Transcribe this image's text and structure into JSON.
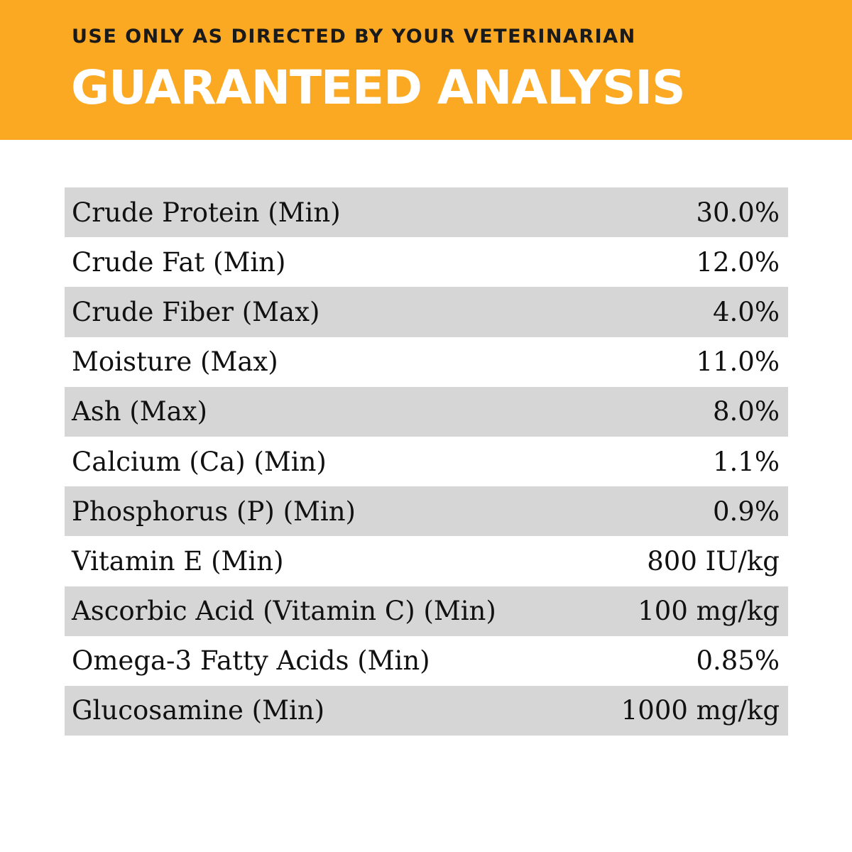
{
  "header": {
    "subtitle": "USE ONLY AS DIRECTED BY YOUR VETERINARIAN",
    "title": "GUARANTEED ANALYSIS",
    "background_color": "#fba922"
  },
  "analysis": [
    {
      "label": "Crude Protein (Min)",
      "value": "30.0%"
    },
    {
      "label": "Crude Fat (Min)",
      "value": "12.0%"
    },
    {
      "label": "Crude Fiber (Max)",
      "value": "4.0%"
    },
    {
      "label": "Moisture (Max)",
      "value": "11.0%"
    },
    {
      "label": "Ash (Max)",
      "value": "8.0%"
    },
    {
      "label": "Calcium (Ca) (Min)",
      "value": "1.1%"
    },
    {
      "label": "Phosphorus (P) (Min)",
      "value": "0.9%"
    },
    {
      "label": "Vitamin E (Min)",
      "value": "800 IU/kg"
    },
    {
      "label": "Ascorbic Acid (Vitamin C) (Min)",
      "value": "100 mg/kg"
    },
    {
      "label": "Omega-3 Fatty Acids (Min)",
      "value": "0.85%"
    },
    {
      "label": "Glucosamine (Min)",
      "value": "1000 mg/kg"
    }
  ]
}
